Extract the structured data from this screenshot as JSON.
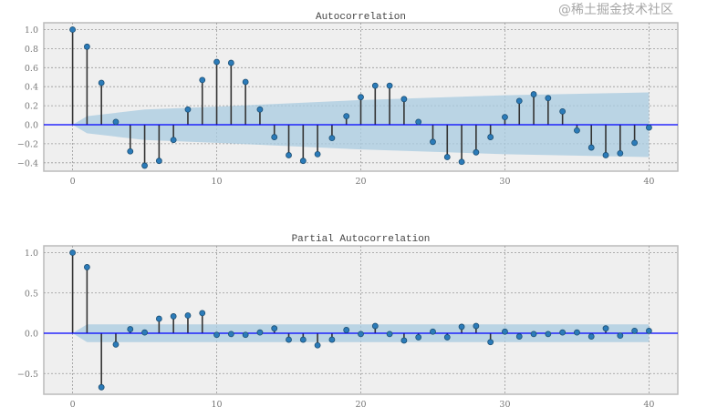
{
  "chart_data": [
    {
      "type": "stem",
      "title": "Autocorrelation",
      "xlabel": "",
      "ylabel": "",
      "xlim": [
        -2,
        42
      ],
      "ylim": [
        -0.5,
        1.05
      ],
      "x_ticks": [
        "0",
        "10",
        "20",
        "30",
        "40"
      ],
      "y_ticks": [
        "1.0",
        "0.8",
        "0.6",
        "0.4",
        "0.2",
        "0.0",
        "-0.2",
        "-0.4"
      ],
      "grid": true,
      "lags": [
        0,
        1,
        2,
        3,
        4,
        5,
        6,
        7,
        8,
        9,
        10,
        11,
        12,
        13,
        14,
        15,
        16,
        17,
        18,
        19,
        20,
        21,
        22,
        23,
        24,
        25,
        26,
        27,
        28,
        29,
        30,
        31,
        32,
        33,
        34,
        35,
        36,
        37,
        38,
        39,
        40
      ],
      "values": [
        1.0,
        0.82,
        0.44,
        0.03,
        -0.28,
        -0.43,
        -0.38,
        -0.16,
        0.16,
        0.47,
        0.66,
        0.65,
        0.45,
        0.16,
        -0.13,
        -0.32,
        -0.38,
        -0.31,
        -0.14,
        0.09,
        0.29,
        0.41,
        0.41,
        0.27,
        0.03,
        -0.18,
        -0.34,
        -0.39,
        -0.29,
        -0.13,
        0.08,
        0.25,
        0.32,
        0.28,
        0.14,
        -0.06,
        -0.24,
        -0.32,
        -0.3,
        -0.19,
        -0.03
      ],
      "confidence_band": {
        "lags": [
          0,
          1,
          5,
          10,
          20,
          30,
          40
        ],
        "upper": [
          0.0,
          0.09,
          0.16,
          0.19,
          0.26,
          0.31,
          0.34
        ]
      }
    },
    {
      "type": "stem",
      "title": "Partial Autocorrelation",
      "xlabel": "",
      "ylabel": "",
      "xlim": [
        -2,
        42
      ],
      "ylim": [
        -0.75,
        1.05
      ],
      "x_ticks": [
        "0",
        "10",
        "20",
        "30",
        "40"
      ],
      "y_ticks": [
        "1.0",
        "0.5",
        "0.0",
        "-0.5"
      ],
      "grid": true,
      "lags": [
        0,
        1,
        2,
        3,
        4,
        5,
        6,
        7,
        8,
        9,
        10,
        11,
        12,
        13,
        14,
        15,
        16,
        17,
        18,
        19,
        20,
        21,
        22,
        23,
        24,
        25,
        26,
        27,
        28,
        29,
        30,
        31,
        32,
        33,
        34,
        35,
        36,
        37,
        38,
        39,
        40
      ],
      "values": [
        1.0,
        0.82,
        -0.67,
        -0.14,
        0.05,
        0.01,
        0.18,
        0.21,
        0.22,
        0.25,
        -0.02,
        -0.01,
        -0.02,
        0.01,
        0.06,
        -0.08,
        -0.08,
        -0.15,
        -0.08,
        0.04,
        -0.01,
        0.09,
        -0.01,
        -0.09,
        -0.05,
        0.02,
        -0.05,
        0.08,
        0.09,
        -0.11,
        0.02,
        -0.04,
        -0.01,
        -0.01,
        0.01,
        0.01,
        -0.04,
        0.06,
        -0.03,
        0.03,
        0.03
      ],
      "confidence_band": {
        "lags": [
          0,
          1,
          40
        ],
        "upper": [
          0.0,
          0.11,
          0.11
        ]
      }
    }
  ],
  "colors": {
    "stem": "#333333",
    "marker": "#2b7bb9",
    "zero_line": "#0000ff",
    "band": "#a8cbe0",
    "axes_bg": "#efefef"
  },
  "watermark": "@稀土掘金技术社区"
}
